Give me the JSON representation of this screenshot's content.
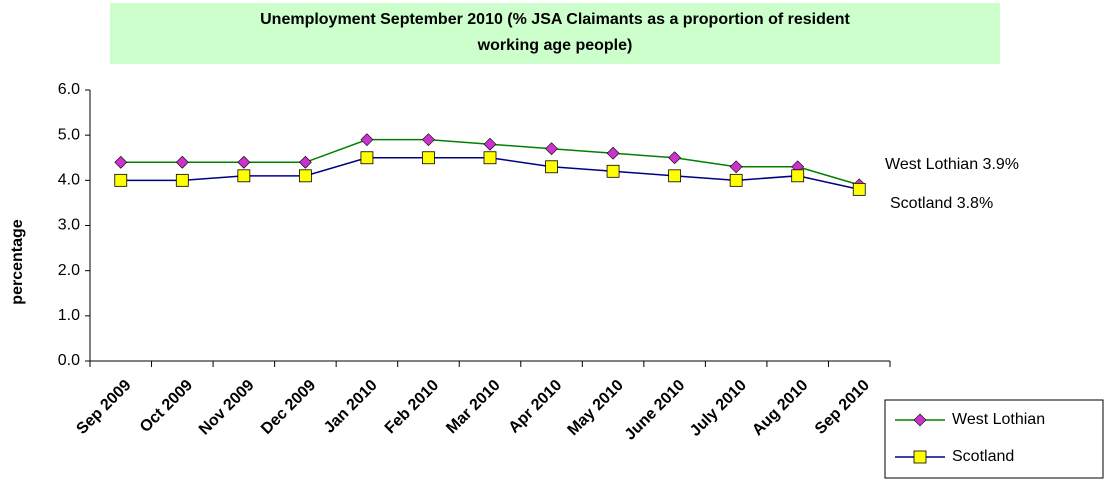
{
  "chart_data": {
    "type": "line",
    "title_lines": [
      "Unemployment September 2010 (% JSA Claimants as a proportion of resident",
      "working age people)"
    ],
    "y_label": "percentage",
    "categories": [
      "Sep 2009",
      "Oct 2009",
      "Nov 2009",
      "Dec 2009",
      "Jan 2010",
      "Feb 2010",
      "Mar 2010",
      "Apr 2010",
      "May 2010",
      "June 2010",
      "July 2010",
      "Aug 2010",
      "Sep 2010"
    ],
    "series": [
      {
        "name": "West Lothian",
        "color": "#008000",
        "marker_color": "#cc33cc",
        "marker": "diamond",
        "values": [
          4.4,
          4.4,
          4.4,
          4.4,
          4.9,
          4.9,
          4.8,
          4.7,
          4.6,
          4.5,
          4.3,
          4.3,
          3.9
        ]
      },
      {
        "name": "Scotland",
        "color": "#000080",
        "marker_color": "#ffff00",
        "marker": "square",
        "values": [
          4.0,
          4.0,
          4.1,
          4.1,
          4.5,
          4.5,
          4.5,
          4.3,
          4.2,
          4.1,
          4.0,
          4.1,
          3.8
        ]
      }
    ],
    "annotations": [
      "West Lothian 3.9%",
      "Scotland 3.8%"
    ],
    "ylim": [
      0,
      6
    ],
    "yticks": [
      {
        "value": 0,
        "label": "0.0"
      },
      {
        "value": 1,
        "label": "1.0"
      },
      {
        "value": 2,
        "label": "2.0"
      },
      {
        "value": 3,
        "label": "3.0"
      },
      {
        "value": 4,
        "label": "4.0"
      },
      {
        "value": 5,
        "label": "5.0"
      },
      {
        "value": 6,
        "label": "6.0"
      }
    ],
    "grid": false,
    "legend": "bottom-right"
  }
}
